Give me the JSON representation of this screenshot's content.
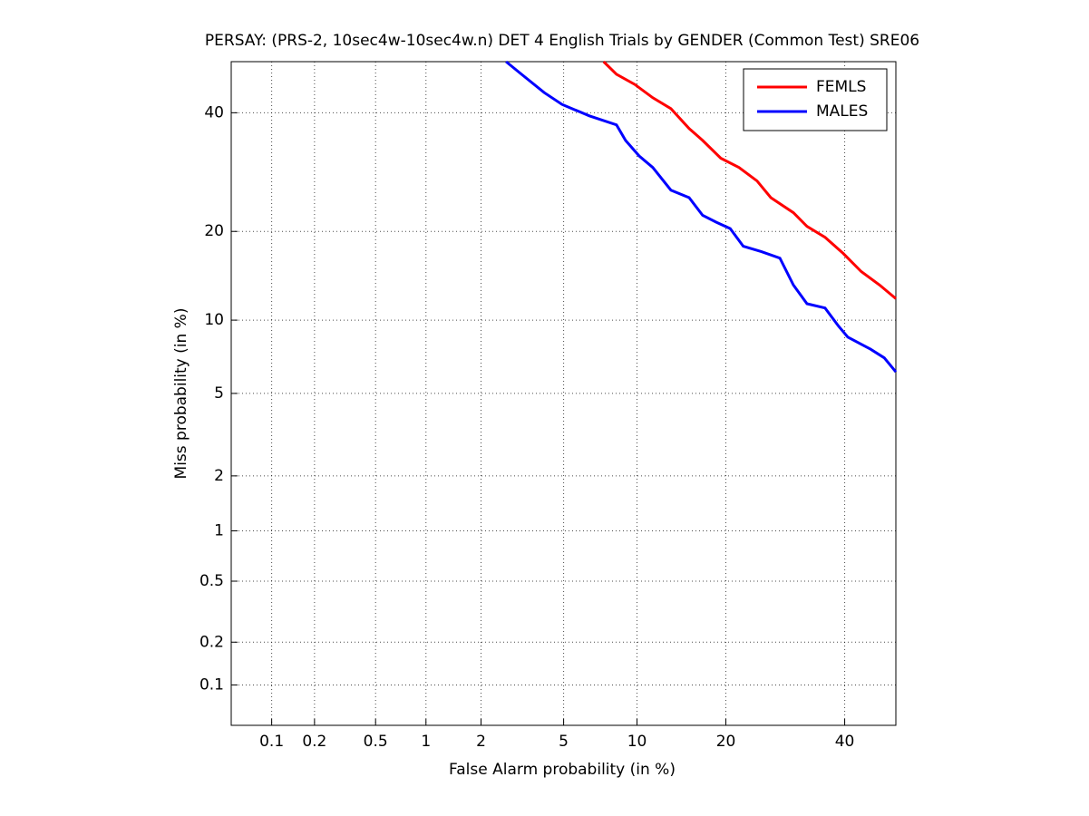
{
  "chart_data": {
    "type": "line",
    "title": "PERSAY: (PRS-2, 10sec4w-10sec4w.n) DET 4 English Trials by GENDER (Common Test) SRE06",
    "x_label": "False Alarm probability (in %)",
    "y_label": "Miss probability (in %)",
    "scale": "probit",
    "xlim": [
      0.05,
      50
    ],
    "ylim": [
      0.05,
      50
    ],
    "xticks": [
      0.1,
      0.2,
      0.5,
      1,
      2,
      5,
      10,
      20,
      40
    ],
    "yticks": [
      0.1,
      0.2,
      0.5,
      1,
      2,
      5,
      10,
      20,
      40
    ],
    "grid": true,
    "legend": "northeast",
    "series": [
      {
        "name": "FEMLS",
        "color": "#ff0000",
        "x": [
          7.4,
          8.33,
          9.8,
          11.44,
          13.27,
          15.3,
          16.94,
          19.3,
          21.86,
          24.6,
          26.8,
          30.6,
          33.0,
          36.3,
          39.7,
          43.2,
          46.8,
          50
        ],
        "values": [
          50,
          47.5,
          45.5,
          42.9,
          40.8,
          37.0,
          34.8,
          31.6,
          30.0,
          27.7,
          25.0,
          22.7,
          20.7,
          19.2,
          17.1,
          14.9,
          13.4,
          12.0
        ]
      },
      {
        "name": "MALES",
        "color": "#0000ff",
        "x": [
          2.68,
          3.19,
          4.08,
          4.92,
          6.46,
          8.33,
          9.04,
          10.19,
          11.44,
          13.27,
          15.3,
          16.94,
          18.7,
          20.6,
          22.5,
          25.3,
          28.3,
          30.6,
          33.0,
          36.3,
          38.8,
          40.6,
          45.0,
          47.7,
          50
        ],
        "values": [
          50,
          47.5,
          43.9,
          41.6,
          39.4,
          37.7,
          34.8,
          32.0,
          30.0,
          26.2,
          25.0,
          22.3,
          21.3,
          20.4,
          18.0,
          17.3,
          16.5,
          13.4,
          11.5,
          11.1,
          9.5,
          8.6,
          7.7,
          7.1,
          6.2
        ]
      }
    ]
  }
}
